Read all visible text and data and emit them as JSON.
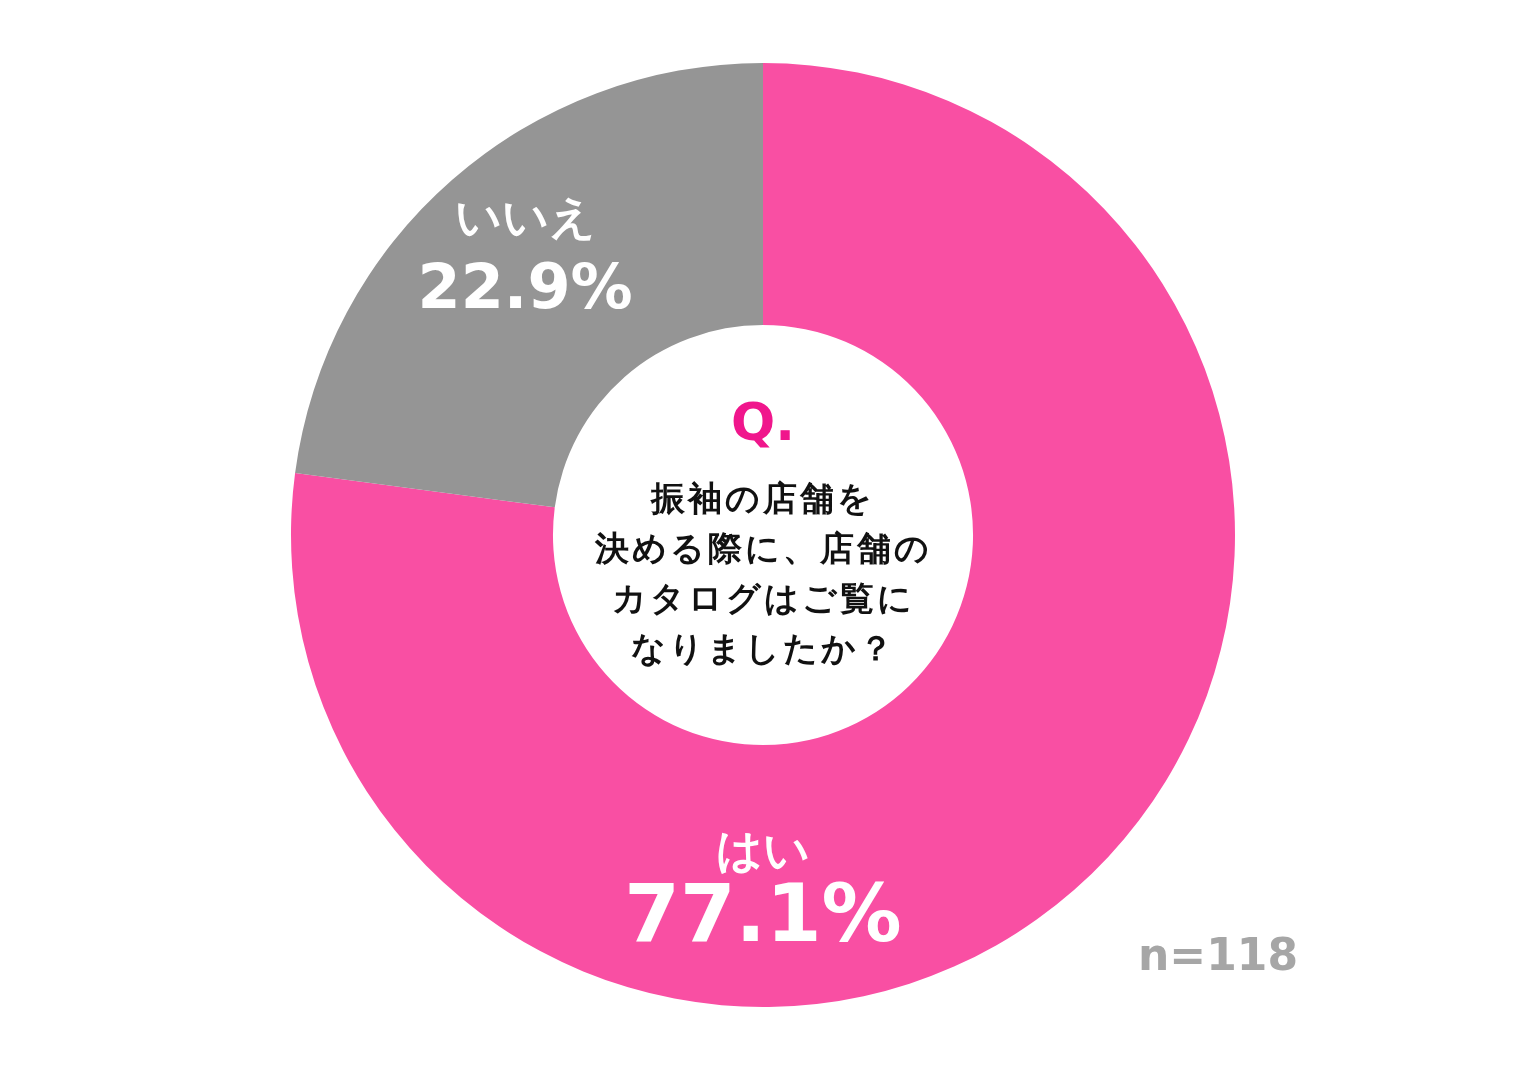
{
  "chart_data": {
    "type": "donut",
    "title": "Q.",
    "subtitle": "振袖の店舗を決める際に、店舗のカタログはご覧になりましたか？",
    "categories": [
      "はい",
      "いいえ"
    ],
    "values": [
      77.1,
      22.9
    ],
    "colors": [
      "#f94fa3",
      "#959595"
    ],
    "value_labels": [
      "77.1%",
      "22.9%"
    ],
    "annotations": [
      "n=118"
    ]
  }
}
